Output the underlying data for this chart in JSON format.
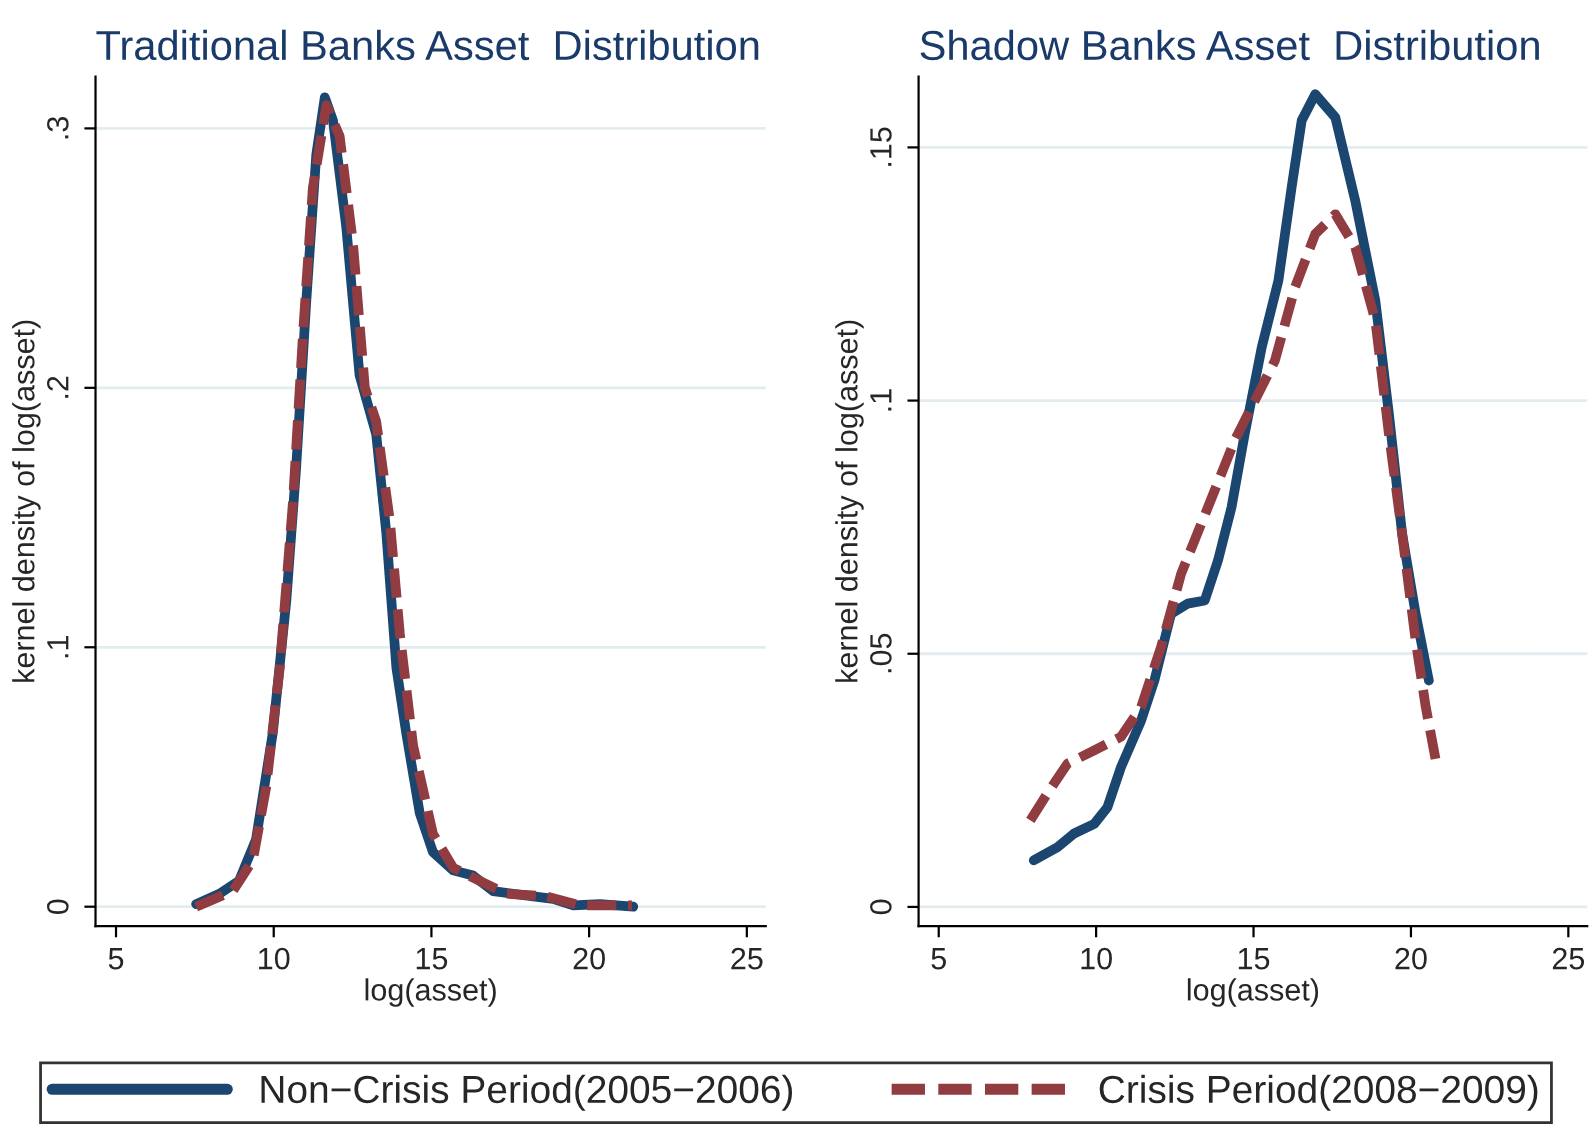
{
  "chart_data": [
    {
      "type": "line",
      "title": "Traditional Banks Asset  Distribution",
      "xlabel": "log(asset)",
      "ylabel": "kernel density of log(asset)",
      "xlim": [
        4.35,
        25.6
      ],
      "xticks": [
        5,
        10,
        15,
        20,
        25
      ],
      "ylim": [
        -0.0075,
        0.32
      ],
      "yticks": [
        {
          "value": 0,
          "label": "0"
        },
        {
          "value": 0.1,
          "label": ".1"
        },
        {
          "value": 0.2,
          "label": ".2"
        },
        {
          "value": 0.3,
          "label": ".3"
        }
      ],
      "grid": "y",
      "legend": "bottom",
      "series": [
        {
          "name": "Non−Crisis Period(2005−2006)",
          "color": "#1a4670",
          "line_style": "solid",
          "x": [
            7.54,
            8.28,
            8.9,
            9.44,
            9.97,
            10.4,
            10.71,
            11.03,
            11.35,
            11.62,
            11.88,
            12.3,
            12.72,
            13.25,
            13.57,
            13.89,
            14.2,
            14.63,
            15.05,
            15.69,
            16.32,
            16.96,
            18.23,
            18.86,
            19.5,
            20.34,
            21.4
          ],
          "values": [
            0.001,
            0.005,
            0.01,
            0.026,
            0.067,
            0.118,
            0.169,
            0.233,
            0.29,
            0.312,
            0.303,
            0.262,
            0.205,
            0.182,
            0.144,
            0.092,
            0.067,
            0.036,
            0.021,
            0.014,
            0.012,
            0.006,
            0.004,
            0.003,
            0.0005,
            0.001,
            0.0
          ]
        },
        {
          "name": "Crisis Period(2008−2009)",
          "color": "#903c40",
          "line_style": "dashed",
          "x": [
            7.54,
            8.7,
            9.34,
            9.76,
            10.19,
            10.61,
            10.93,
            11.24,
            11.67,
            12.09,
            12.51,
            12.89,
            13.25,
            13.68,
            14.0,
            14.42,
            15.05,
            15.69,
            16.53,
            17.38,
            18.65,
            19.71,
            21.36
          ],
          "values": [
            0.0,
            0.006,
            0.018,
            0.046,
            0.092,
            0.156,
            0.221,
            0.277,
            0.309,
            0.297,
            0.256,
            0.2,
            0.187,
            0.149,
            0.105,
            0.062,
            0.028,
            0.015,
            0.01,
            0.005,
            0.004,
            0.0005,
            0.0005
          ]
        }
      ]
    },
    {
      "type": "line",
      "title": "Shadow Banks Asset  Distribution",
      "xlabel": "log(asset)",
      "ylabel": "kernel density of log(asset)",
      "xlim": [
        4.36,
        25.6
      ],
      "xticks": [
        5,
        10,
        15,
        20,
        25
      ],
      "ylim": [
        -0.0038,
        0.164
      ],
      "yticks": [
        {
          "value": 0,
          "label": "0"
        },
        {
          "value": 0.05,
          "label": ".05"
        },
        {
          "value": 0.1,
          "label": ".1"
        },
        {
          "value": 0.15,
          "label": ".15"
        }
      ],
      "grid": "y",
      "series": [
        {
          "color": "#1a4670",
          "line_style": "solid",
          "x": [
            8.02,
            8.77,
            9.3,
            9.94,
            10.36,
            10.79,
            11.43,
            11.85,
            12.38,
            12.91,
            13.45,
            13.87,
            14.3,
            14.72,
            15.26,
            15.79,
            16.21,
            16.53,
            16.96,
            17.6,
            18.23,
            18.87,
            19.3,
            19.72,
            20.15,
            20.57
          ],
          "values": [
            0.0092,
            0.0118,
            0.0145,
            0.0164,
            0.0197,
            0.0276,
            0.0368,
            0.0447,
            0.0579,
            0.0599,
            0.0605,
            0.0684,
            0.0789,
            0.0934,
            0.1105,
            0.1237,
            0.1421,
            0.1553,
            0.1605,
            0.1559,
            0.1395,
            0.1197,
            0.0974,
            0.0737,
            0.0579,
            0.0447
          ]
        },
        {
          "color": "#903c40",
          "line_style": "dashed",
          "x": [
            7.91,
            8.45,
            9.09,
            9.94,
            10.79,
            11.43,
            12.06,
            12.7,
            13.55,
            14.4,
            15.04,
            15.68,
            16.32,
            16.96,
            17.6,
            18.23,
            18.87,
            19.3,
            19.72,
            20.15,
            20.47,
            20.79
          ],
          "values": [
            0.0171,
            0.0224,
            0.0283,
            0.0309,
            0.0336,
            0.0395,
            0.0513,
            0.0658,
            0.0789,
            0.0921,
            0.1,
            0.1079,
            0.1224,
            0.1329,
            0.1368,
            0.1303,
            0.1158,
            0.0934,
            0.0737,
            0.0526,
            0.0395,
            0.0289
          ]
        }
      ]
    }
  ]
}
